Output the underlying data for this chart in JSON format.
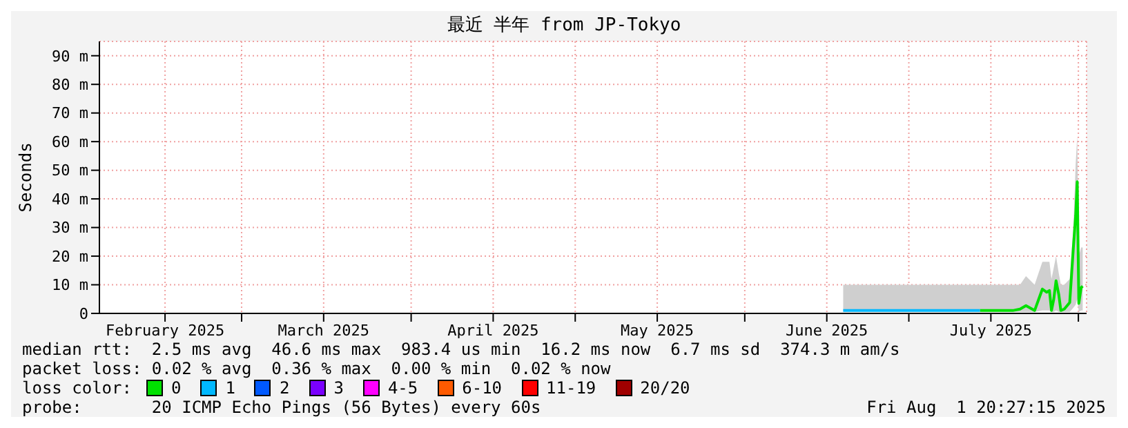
{
  "chart_data": {
    "type": "line",
    "title": "最近 半年 from JP-Tokyo",
    "ylabel": "Seconds",
    "x": [
      "2025-06-19",
      "2025-06-26",
      "2025-07-03",
      "2025-07-10",
      "2025-07-14",
      "2025-07-20",
      "2025-07-21T08:00",
      "2025-07-22T10:00",
      "2025-07-24T00:00",
      "2025-07-25T10:00",
      "2025-07-26T05:00",
      "2025-07-26T17:00",
      "2025-07-27T02:00",
      "2025-07-27T12:00",
      "2025-07-27T22:00",
      "2025-07-28T10:00",
      "2025-07-28T19:00",
      "2025-07-29T10:00",
      "2025-07-30T10:00",
      "2025-07-31T02:00",
      "2025-07-31T12:00",
      "2025-07-31T19:00",
      "2025-08-01T02:00",
      "2025-08-01T12:00",
      "2025-08-01T19:00"
    ],
    "series": [
      {
        "name": "0",
        "color": "#00e000",
        "values": [
          null,
          null,
          null,
          null,
          1,
          1,
          1.5,
          2.7,
          1,
          8.5,
          7.4,
          8,
          1,
          5,
          11.4,
          6.6,
          1,
          1.5,
          3.8,
          23,
          34,
          46,
          3.5,
          9,
          9.5
        ],
        "lower": [
          0.5,
          0.5,
          0.5,
          0.5,
          0.5,
          0.5,
          0.5,
          0.5,
          0.5,
          1,
          1,
          1,
          0.5,
          0.5,
          1,
          0.5,
          0.5,
          0.5,
          0.5,
          2,
          3,
          5,
          0.5,
          1,
          1
        ],
        "upper": [
          10,
          10,
          10,
          10,
          10,
          10,
          10,
          13,
          10,
          18,
          18,
          18,
          12,
          16,
          20,
          14,
          10,
          10,
          12,
          30,
          52,
          62,
          20,
          23,
          23
        ]
      },
      {
        "name": "1",
        "color": "#00b8ff",
        "values": [
          1,
          1,
          1,
          1,
          1,
          null,
          null,
          null,
          null,
          null,
          null,
          null,
          null,
          null,
          null,
          null,
          null,
          null,
          null,
          null,
          null,
          null,
          null,
          null,
          null
        ]
      },
      {
        "name": "2",
        "color": "#0059ff",
        "values": [
          null,
          null,
          null,
          null,
          null,
          null,
          null,
          null,
          null,
          null,
          null,
          null,
          null,
          null,
          null,
          null,
          null,
          null,
          null,
          null,
          null,
          null,
          null,
          null,
          null
        ]
      },
      {
        "name": "3",
        "color": "#7a00ff",
        "values": [
          null,
          null,
          null,
          null,
          null,
          null,
          null,
          null,
          null,
          null,
          null,
          null,
          null,
          null,
          null,
          null,
          null,
          null,
          null,
          null,
          null,
          null,
          null,
          null,
          null
        ]
      },
      {
        "name": "4-5",
        "color": "#ff00ff",
        "values": [
          null,
          null,
          null,
          null,
          null,
          null,
          null,
          null,
          null,
          null,
          null,
          null,
          null,
          null,
          null,
          null,
          null,
          null,
          null,
          null,
          null,
          null,
          null,
          null,
          null
        ]
      },
      {
        "name": "6-10",
        "color": "#ff5a00",
        "values": [
          null,
          null,
          null,
          null,
          null,
          null,
          null,
          null,
          null,
          null,
          null,
          null,
          null,
          null,
          null,
          null,
          null,
          null,
          null,
          null,
          null,
          null,
          null,
          null,
          null
        ]
      },
      {
        "name": "11-19",
        "color": "#ff0000",
        "values": [
          null,
          null,
          null,
          null,
          null,
          null,
          null,
          null,
          null,
          null,
          null,
          null,
          null,
          null,
          null,
          null,
          null,
          null,
          null,
          null,
          null,
          null,
          null,
          null,
          null
        ]
      },
      {
        "name": "20/20",
        "color": "#a00000",
        "values": [
          null,
          null,
          null,
          null,
          null,
          null,
          null,
          null,
          null,
          null,
          null,
          null,
          null,
          null,
          null,
          null,
          null,
          null,
          null,
          null,
          null,
          null,
          null,
          null,
          null
        ]
      }
    ],
    "xlim": [
      "2025-02-03",
      "2025-08-02T12:00"
    ],
    "xticks": [
      {
        "value": "2025-02-15",
        "label": "February 2025"
      },
      {
        "value": "2025-03-01",
        "label": null
      },
      {
        "value": "2025-03-16",
        "label": "March 2025"
      },
      {
        "value": "2025-04-01",
        "label": null
      },
      {
        "value": "2025-04-16",
        "label": "April 2025"
      },
      {
        "value": "2025-05-01",
        "label": null
      },
      {
        "value": "2025-05-16",
        "label": "May 2025"
      },
      {
        "value": "2025-06-01",
        "label": null
      },
      {
        "value": "2025-06-16",
        "label": "June 2025"
      },
      {
        "value": "2025-07-01",
        "label": null
      },
      {
        "value": "2025-07-16",
        "label": "July 2025"
      },
      {
        "value": "2025-08-01",
        "label": null
      }
    ],
    "ylim": [
      0,
      95
    ],
    "yticks": [
      0,
      {
        "value": 10,
        "label": "10 m"
      },
      {
        "value": 20,
        "label": "20 m"
      },
      {
        "value": 30,
        "label": "30 m"
      },
      {
        "value": 40,
        "label": "40 m"
      },
      {
        "value": 50,
        "label": "50 m"
      },
      {
        "value": 60,
        "label": "60 m"
      },
      {
        "value": 70,
        "label": "70 m"
      },
      {
        "value": 80,
        "label": "80 m"
      },
      {
        "value": 90,
        "label": "90 m"
      }
    ],
    "grid": true,
    "legend": "bottom",
    "legend_title": "loss color:",
    "line_style": "solid",
    "annotations": [
      "median rtt:  2.5 ms avg  46.6 ms max  983.4 us min  16.2 ms now  6.7 ms sd  374.3 m am/s",
      "packet loss: 0.02 % avg  0.36 % max  0.00 % min  0.02 % now",
      "probe:       20 ICMP Echo Pings (56 Bytes) every 60s",
      "Fri Aug  1 20:27:15 2025"
    ]
  }
}
